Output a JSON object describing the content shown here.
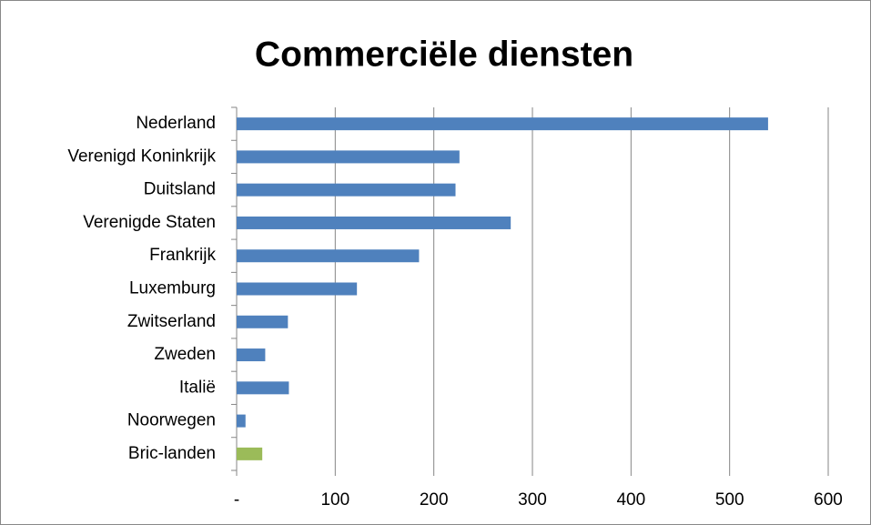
{
  "chart_data": {
    "type": "barh",
    "title": "Commerciële diensten",
    "categories": [
      "Nederland",
      "Verenigd Koninkrijk",
      "Duitsland",
      "Verenigde Staten",
      "Frankrijk",
      "Luxemburg",
      "Zwitserland",
      "Zweden",
      "Italië",
      "Noorwegen",
      "Bric-landen"
    ],
    "values": [
      539,
      226,
      222,
      278,
      185,
      122,
      52,
      29,
      53,
      9,
      26
    ],
    "colors": [
      "#4f81bd",
      "#4f81bd",
      "#4f81bd",
      "#4f81bd",
      "#4f81bd",
      "#4f81bd",
      "#4f81bd",
      "#4f81bd",
      "#4f81bd",
      "#4f81bd",
      "#9bbb59"
    ],
    "xlim": [
      0,
      600
    ],
    "xticks": [
      {
        "value": 0,
        "label": "-"
      },
      100,
      200,
      300,
      400,
      500,
      600
    ],
    "grid": true
  }
}
